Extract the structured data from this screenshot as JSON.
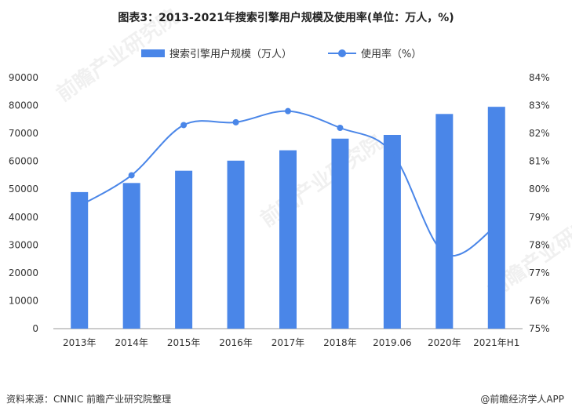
{
  "title": "图表3：2013-2021年搜索引擎用户规模及使用率(单位：万人，%)",
  "footer": {
    "source": "资料来源：CNNIC 前瞻产业研究院整理",
    "brand": "@前瞻经济学人APP"
  },
  "watermark": "前瞻产业研究院",
  "colors": {
    "bar": "#4a86e8",
    "line": "#4a86e8",
    "axis": "#999999",
    "text": "#333333"
  },
  "chart_data": {
    "type": "bar",
    "title": "图表3：2013-2021年搜索引擎用户规模及使用率(单位：万人，%)",
    "categories": [
      "2013年",
      "2014年",
      "2015年",
      "2016年",
      "2017年",
      "2018年",
      "2019.06",
      "2020年",
      "2021年H1"
    ],
    "series": [
      {
        "name": "搜索引擎用户规模（万人）",
        "type": "bar",
        "axis": "left",
        "values": [
          48966,
          52223,
          56623,
          60238,
          63956,
          68132,
          69470,
          76977,
          79544
        ]
      },
      {
        "name": "使用率（%）",
        "type": "line",
        "axis": "right",
        "smooth": true,
        "values": [
          79.4,
          80.5,
          82.3,
          82.4,
          82.8,
          82.2,
          81.3,
          77.7,
          78.7
        ]
      }
    ],
    "y_left": {
      "min": 0,
      "max": 90000,
      "ticks": [
        "0",
        "10000",
        "20000",
        "30000",
        "40000",
        "50000",
        "60000",
        "70000",
        "80000",
        "90000"
      ]
    },
    "y_right": {
      "min": 75,
      "max": 84,
      "ticks": [
        "75%",
        "76%",
        "77%",
        "78%",
        "79%",
        "80%",
        "81%",
        "82%",
        "83%",
        "84%"
      ]
    },
    "markers_shown": [
      true,
      true,
      true,
      true,
      true,
      true,
      false,
      false,
      false
    ],
    "grid": false,
    "legend_position": "top-center"
  }
}
